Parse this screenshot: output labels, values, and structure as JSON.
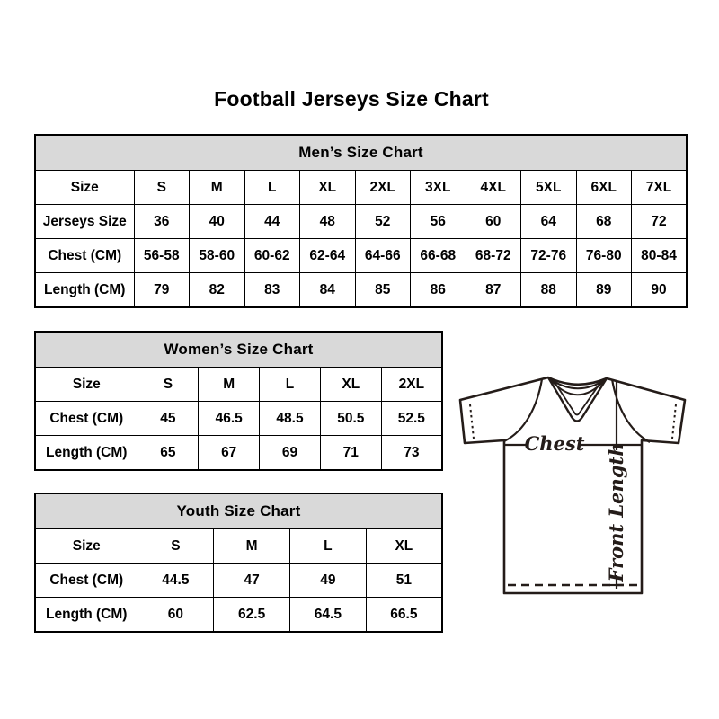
{
  "page": {
    "title": "Football Jerseys Size Chart"
  },
  "colors": {
    "background": "#ffffff",
    "table_header_bg": "#d9d9d9",
    "table_border": "#000000",
    "text": "#000000",
    "diagram_line": "#241c19"
  },
  "tables": {
    "mens": {
      "title": "Men’s Size Chart",
      "rows": [
        [
          "Size",
          "S",
          "M",
          "L",
          "XL",
          "2XL",
          "3XL",
          "4XL",
          "5XL",
          "6XL",
          "7XL"
        ],
        [
          "Jerseys Size",
          "36",
          "40",
          "44",
          "48",
          "52",
          "56",
          "60",
          "64",
          "68",
          "72"
        ],
        [
          "Chest (CM)",
          "56-58",
          "58-60",
          "60-62",
          "62-64",
          "64-66",
          "66-68",
          "68-72",
          "72-76",
          "76-80",
          "80-84"
        ],
        [
          "Length (CM)",
          "79",
          "82",
          "83",
          "84",
          "85",
          "86",
          "87",
          "88",
          "89",
          "90"
        ]
      ]
    },
    "womens": {
      "title": "Women’s Size Chart",
      "rows": [
        [
          "Size",
          "S",
          "M",
          "L",
          "XL",
          "2XL"
        ],
        [
          "Chest (CM)",
          "45",
          "46.5",
          "48.5",
          "50.5",
          "52.5"
        ],
        [
          "Length (CM)",
          "65",
          "67",
          "69",
          "71",
          "73"
        ]
      ]
    },
    "youth": {
      "title": "Youth Size Chart",
      "rows": [
        [
          "Size",
          "S",
          "M",
          "L",
          "XL"
        ],
        [
          "Chest (CM)",
          "44.5",
          "47",
          "49",
          "51"
        ],
        [
          "Length (CM)",
          "60",
          "62.5",
          "64.5",
          "66.5"
        ]
      ]
    }
  },
  "diagram": {
    "chest_label": "Chest",
    "front_length_label": "Front Length"
  }
}
